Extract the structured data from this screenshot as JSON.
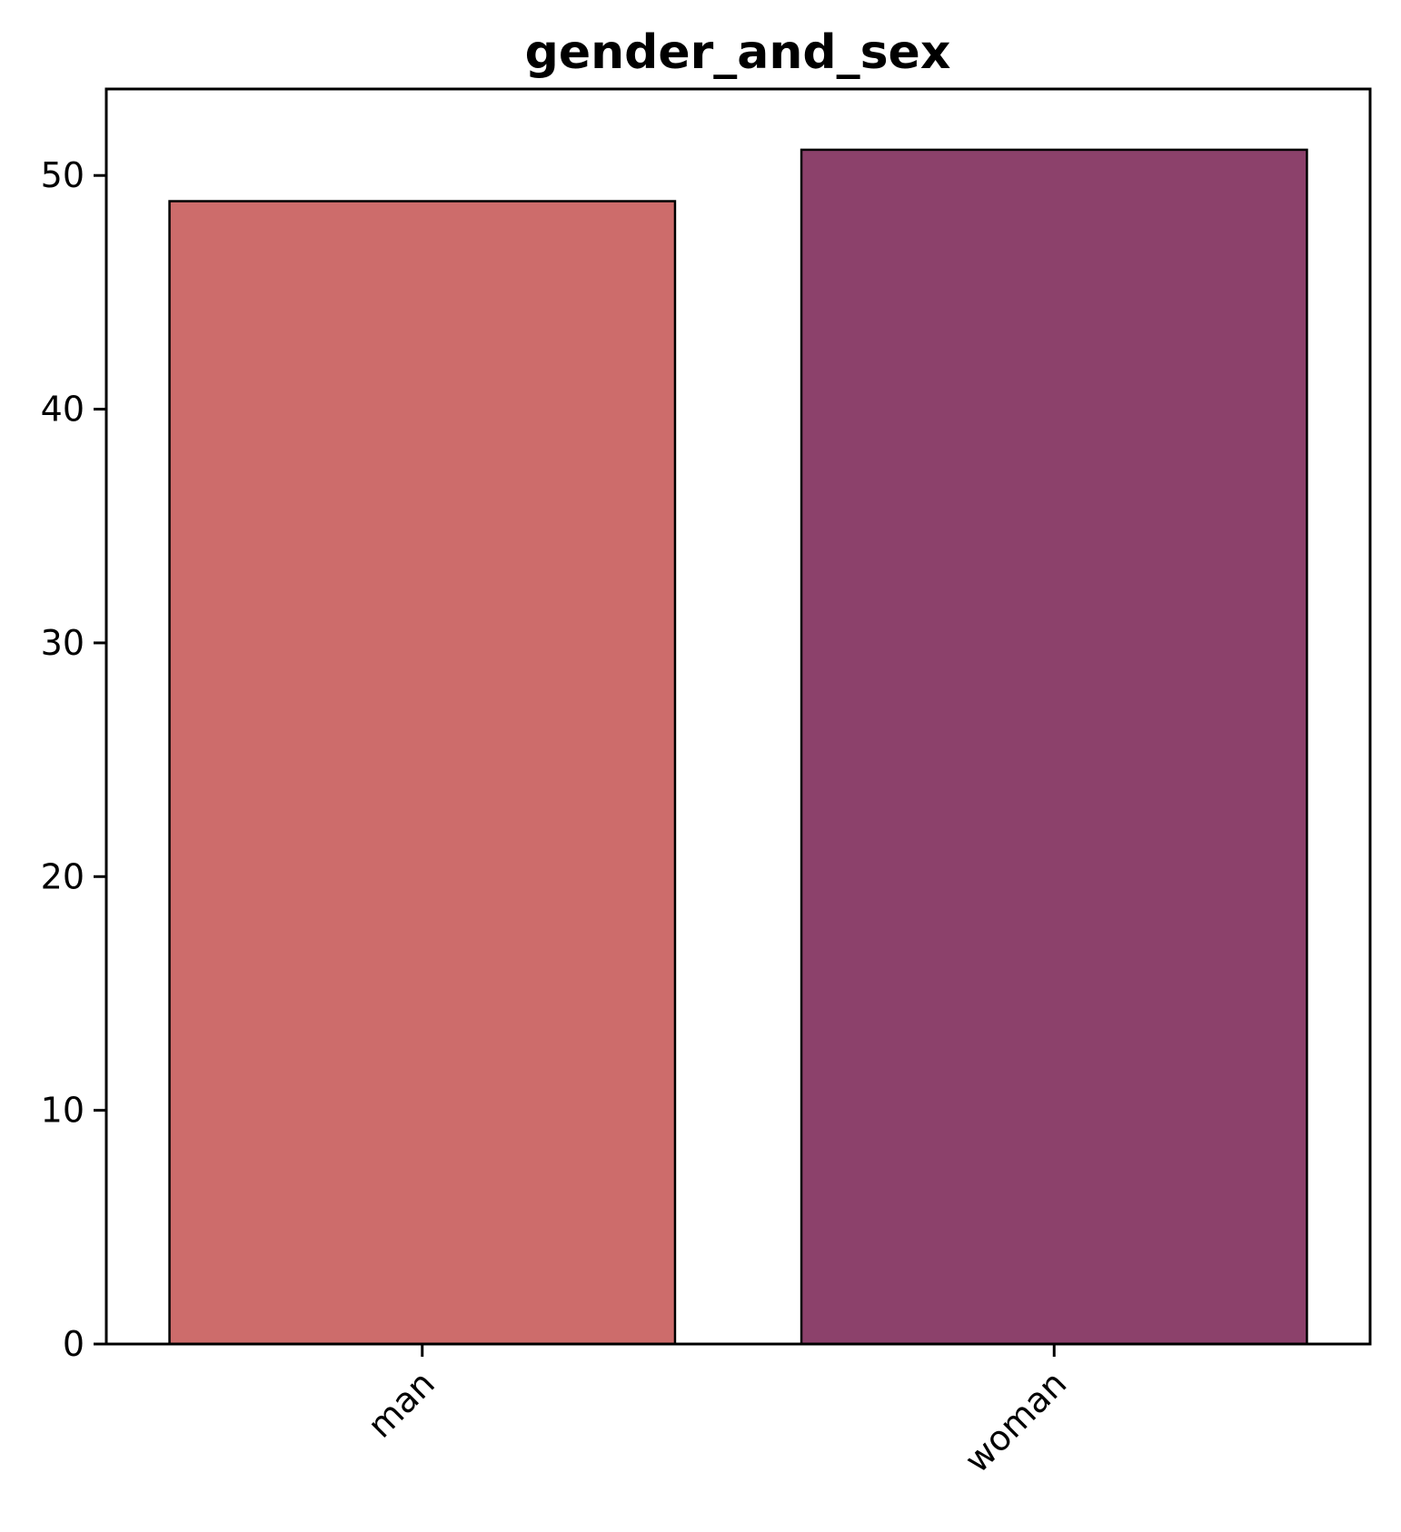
{
  "chart_data": {
    "type": "bar",
    "title": "gender_and_sex",
    "xlabel": "",
    "ylabel": "",
    "categories": [
      "man",
      "woman"
    ],
    "values": [
      48.9,
      51.1
    ],
    "colors": [
      "#cd6c6b",
      "#8c416b"
    ],
    "edge_color": "#000000",
    "ylim": [
      0,
      53.7
    ],
    "yticks": [
      "0",
      "10",
      "20",
      "30",
      "40",
      "50"
    ],
    "grid": false,
    "legend": "none",
    "xtick_rotation": "45"
  }
}
